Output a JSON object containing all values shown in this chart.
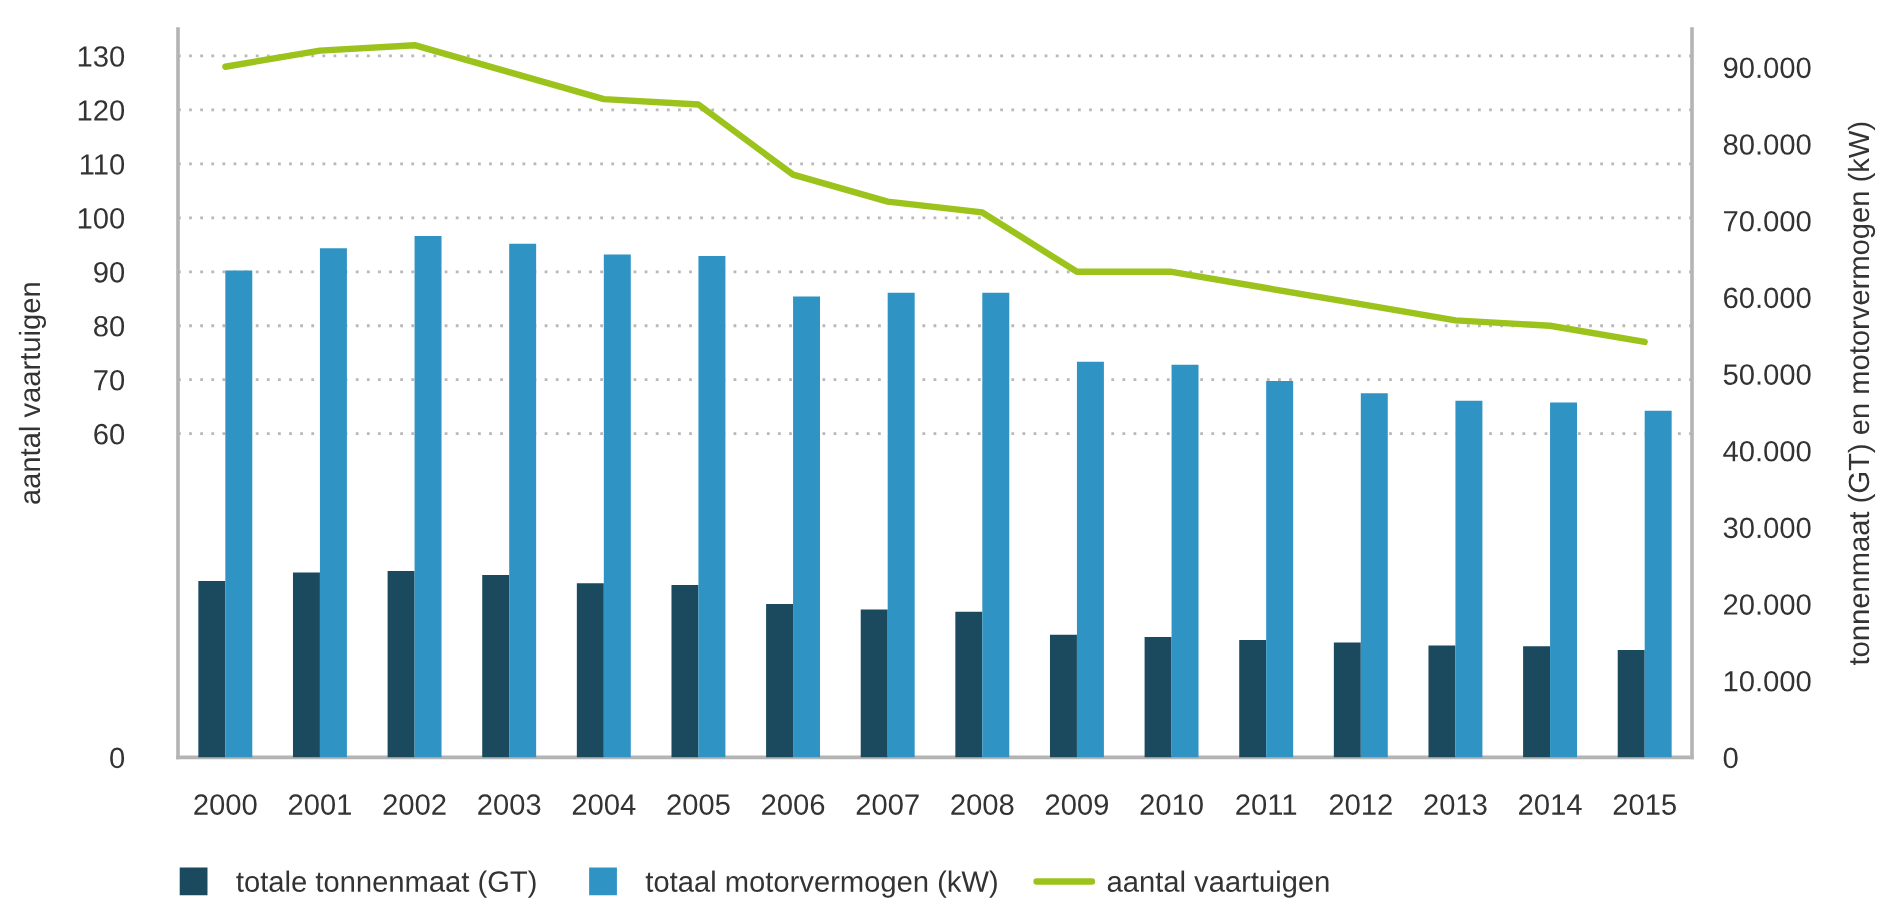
{
  "chart_data": {
    "type": "bar",
    "categories": [
      "2000",
      "2001",
      "2002",
      "2003",
      "2004",
      "2005",
      "2006",
      "2007",
      "2008",
      "2009",
      "2010",
      "2011",
      "2012",
      "2013",
      "2014",
      "2015"
    ],
    "ylabel": "aantal vaartuigen",
    "y2label": "tonnenmaat (GT) en motorvermogen (kW)",
    "ylim": [
      0,
      135
    ],
    "yticks": [
      0,
      60,
      70,
      80,
      90,
      100,
      110,
      120,
      130
    ],
    "y2lim": [
      0,
      95000
    ],
    "y2ticks": [
      0,
      {
        "value": 10000,
        "label": "10.000"
      },
      {
        "value": 20000,
        "label": "20.000"
      },
      {
        "value": 30000,
        "label": "30.000"
      },
      {
        "value": 40000,
        "label": "40.000"
      },
      {
        "value": 50000,
        "label": "50.000"
      },
      {
        "value": 60000,
        "label": "60.000"
      },
      {
        "value": 70000,
        "label": "70.000"
      },
      {
        "value": 80000,
        "label": "80.000"
      },
      {
        "value": 90000,
        "label": "90.000"
      }
    ],
    "grid": "y",
    "legend": "bottom",
    "series": [
      {
        "name": "totale tonnenmaat (GT)",
        "color": "#1b4a5e",
        "axis": "y2",
        "values": [
          23000,
          24100,
          24300,
          23800,
          22700,
          22500,
          20000,
          19300,
          19000,
          16000,
          15700,
          15300,
          15000,
          14600,
          14500,
          14000
        ]
      },
      {
        "name": "totaal motorvermogen (kW)",
        "color": "#2f93c3",
        "axis": "y2",
        "values": [
          63500,
          66400,
          68000,
          67000,
          65600,
          65400,
          60100,
          60600,
          60600,
          51600,
          51200,
          49100,
          47500,
          46500,
          46300,
          45200
        ]
      },
      {
        "name": "aantal vaartuigen",
        "type": "line",
        "color": "#9bc31c",
        "values": [
          128,
          131,
          132,
          127,
          122,
          121,
          108,
          103,
          101,
          90,
          90,
          87,
          84,
          81,
          80,
          77
        ]
      }
    ]
  }
}
